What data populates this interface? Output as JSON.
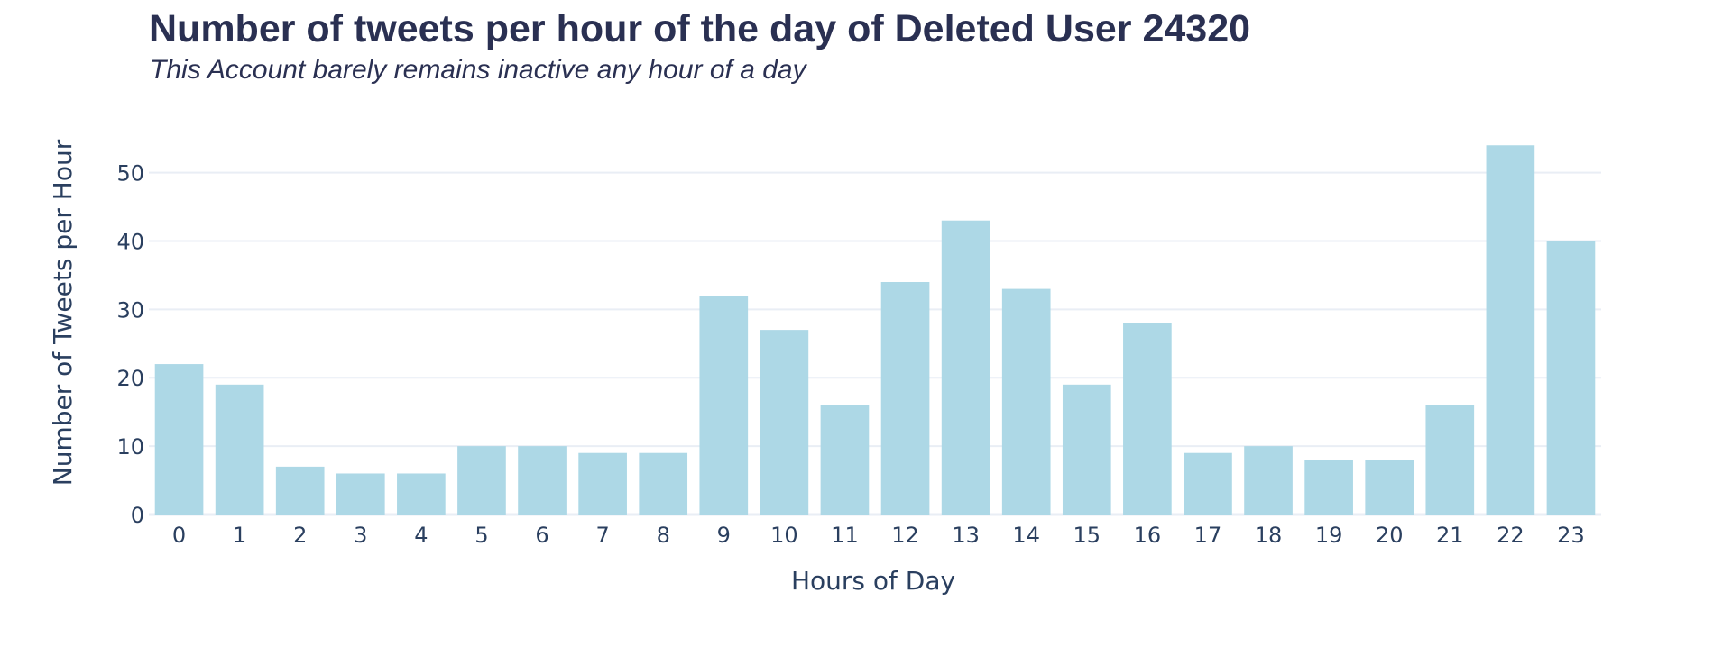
{
  "chart_data": {
    "type": "bar",
    "title": "Number of tweets per hour of the day of Deleted User 24320",
    "subtitle": "This Account barely remains inactive any hour of a day",
    "xlabel": "Hours of Day",
    "ylabel": "Number of Tweets per Hour",
    "categories": [
      "0",
      "1",
      "2",
      "3",
      "4",
      "5",
      "6",
      "7",
      "8",
      "9",
      "10",
      "11",
      "12",
      "13",
      "14",
      "15",
      "16",
      "17",
      "18",
      "19",
      "20",
      "21",
      "22",
      "23"
    ],
    "values": [
      22,
      19,
      7,
      6,
      6,
      10,
      10,
      9,
      9,
      32,
      27,
      16,
      34,
      43,
      33,
      19,
      28,
      9,
      10,
      8,
      8,
      16,
      54,
      40
    ],
    "ylim": [
      0,
      56.8
    ],
    "yticks": [
      0,
      10,
      20,
      30,
      40,
      50
    ],
    "grid": true,
    "bar_color": "#add8e6",
    "grid_color": "#e9eef5",
    "text_color": "#2a3f5f"
  }
}
